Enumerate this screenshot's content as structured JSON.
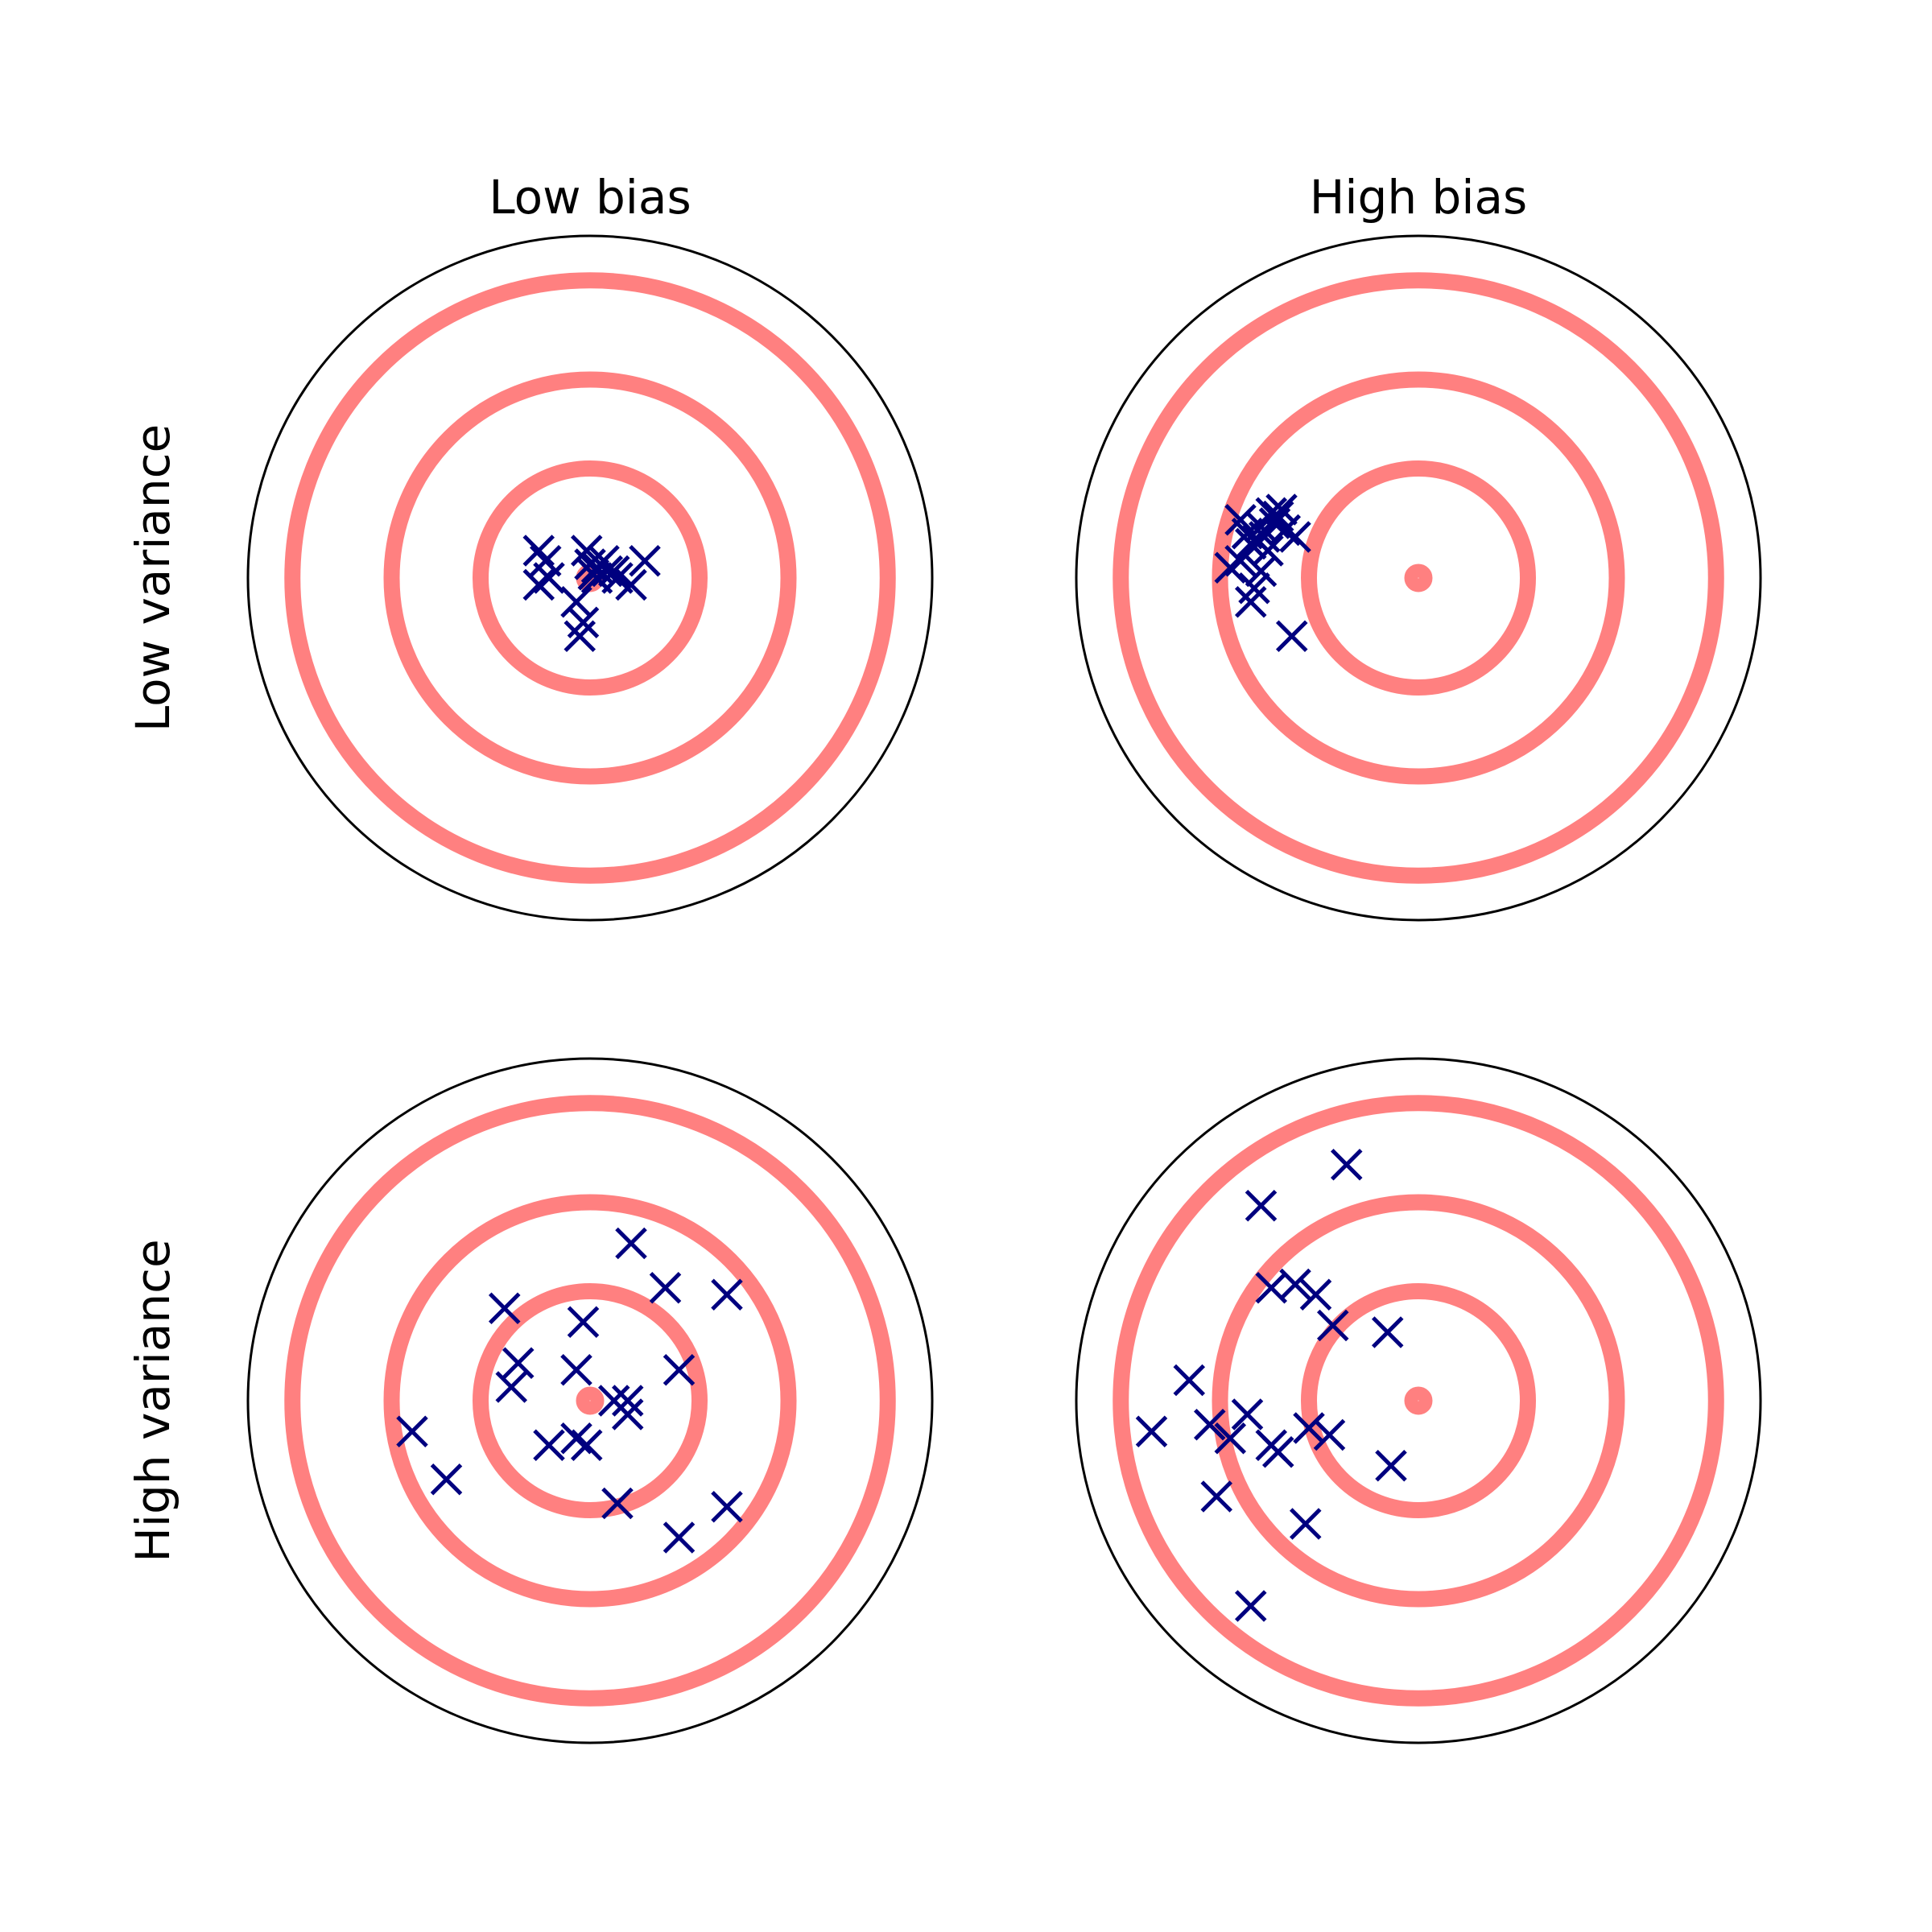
{
  "colors": {
    "ring": "#ff8080",
    "marker": "#00007f",
    "outline": "#000000"
  },
  "column_labels": [
    "Low bias",
    "High bias"
  ],
  "row_labels": [
    "Low variance",
    "High variance"
  ],
  "chart_data": [
    {
      "type": "scatter",
      "title": "Low bias",
      "ylabel": "Low variance",
      "marker": "x",
      "xlim": [
        -1,
        1
      ],
      "ylim": [
        -1,
        1
      ],
      "grid": false,
      "rings": [
        0.02,
        0.32,
        0.58,
        0.87
      ],
      "outer_circle": 1.0,
      "points": [
        {
          "x": -0.15,
          "y": 0.08
        },
        {
          "x": -0.13,
          "y": 0.05
        },
        {
          "x": -0.15,
          "y": -0.02
        },
        {
          "x": -0.12,
          "y": 0.0
        },
        {
          "x": -0.01,
          "y": 0.08
        },
        {
          "x": 0.0,
          "y": 0.04
        },
        {
          "x": 0.01,
          "y": 0.01
        },
        {
          "x": 0.02,
          "y": 0.03
        },
        {
          "x": 0.04,
          "y": 0.05
        },
        {
          "x": 0.05,
          "y": 0.02
        },
        {
          "x": 0.07,
          "y": 0.02
        },
        {
          "x": 0.08,
          "y": 0.0
        },
        {
          "x": 0.12,
          "y": -0.02
        },
        {
          "x": 0.16,
          "y": 0.05
        },
        {
          "x": -0.04,
          "y": -0.07
        },
        {
          "x": -0.02,
          "y": -0.13
        },
        {
          "x": -0.03,
          "y": -0.17
        },
        {
          "x": 0.02,
          "y": 0.0
        }
      ]
    },
    {
      "type": "scatter",
      "title": "High bias",
      "ylabel": "",
      "marker": "x",
      "xlim": [
        -1,
        1
      ],
      "ylim": [
        -1,
        1
      ],
      "grid": false,
      "rings": [
        0.02,
        0.32,
        0.58,
        0.87
      ],
      "outer_circle": 1.0,
      "points": [
        {
          "x": -0.52,
          "y": 0.17
        },
        {
          "x": -0.49,
          "y": 0.1
        },
        {
          "x": -0.5,
          "y": 0.13
        },
        {
          "x": -0.47,
          "y": 0.11
        },
        {
          "x": -0.46,
          "y": 0.15
        },
        {
          "x": -0.45,
          "y": 0.12
        },
        {
          "x": -0.44,
          "y": 0.08
        },
        {
          "x": -0.43,
          "y": 0.19
        },
        {
          "x": -0.42,
          "y": 0.16
        },
        {
          "x": -0.4,
          "y": 0.2
        },
        {
          "x": -0.39,
          "y": 0.14
        },
        {
          "x": -0.36,
          "y": 0.12
        },
        {
          "x": -0.55,
          "y": 0.03
        },
        {
          "x": -0.52,
          "y": 0.05
        },
        {
          "x": -0.48,
          "y": -0.03
        },
        {
          "x": -0.46,
          "y": 0.02
        },
        {
          "x": -0.49,
          "y": -0.07
        },
        {
          "x": -0.37,
          "y": -0.17
        },
        {
          "x": -0.41,
          "y": 0.18
        }
      ]
    },
    {
      "type": "scatter",
      "title": "",
      "ylabel": "High variance",
      "marker": "x",
      "xlim": [
        -1,
        1
      ],
      "ylim": [
        -1,
        1
      ],
      "grid": false,
      "rings": [
        0.02,
        0.32,
        0.58,
        0.87
      ],
      "outer_circle": 1.0,
      "points": [
        {
          "x": 0.12,
          "y": 0.46
        },
        {
          "x": 0.22,
          "y": 0.33
        },
        {
          "x": 0.4,
          "y": 0.31
        },
        {
          "x": -0.25,
          "y": 0.27
        },
        {
          "x": -0.02,
          "y": 0.23
        },
        {
          "x": -0.21,
          "y": 0.11
        },
        {
          "x": -0.04,
          "y": 0.09
        },
        {
          "x": 0.26,
          "y": 0.09
        },
        {
          "x": -0.23,
          "y": 0.04
        },
        {
          "x": 0.07,
          "y": 0.0
        },
        {
          "x": 0.11,
          "y": 0.0
        },
        {
          "x": 0.11,
          "y": -0.04
        },
        {
          "x": -0.52,
          "y": -0.09
        },
        {
          "x": -0.42,
          "y": -0.23
        },
        {
          "x": -0.12,
          "y": -0.13
        },
        {
          "x": -0.04,
          "y": -0.11
        },
        {
          "x": -0.01,
          "y": -0.13
        },
        {
          "x": 0.08,
          "y": -0.3
        },
        {
          "x": 0.4,
          "y": -0.31
        },
        {
          "x": 0.26,
          "y": -0.4
        }
      ]
    },
    {
      "type": "scatter",
      "title": "",
      "ylabel": "",
      "marker": "x",
      "xlim": [
        -1,
        1
      ],
      "ylim": [
        -1,
        1
      ],
      "grid": false,
      "rings": [
        0.02,
        0.32,
        0.58,
        0.87
      ],
      "outer_circle": 1.0,
      "points": [
        {
          "x": -0.21,
          "y": 0.69
        },
        {
          "x": -0.46,
          "y": 0.57
        },
        {
          "x": -0.43,
          "y": 0.33
        },
        {
          "x": -0.36,
          "y": 0.34
        },
        {
          "x": -0.3,
          "y": 0.31
        },
        {
          "x": -0.25,
          "y": 0.22
        },
        {
          "x": -0.09,
          "y": 0.2
        },
        {
          "x": -0.67,
          "y": 0.06
        },
        {
          "x": -0.78,
          "y": -0.09
        },
        {
          "x": -0.61,
          "y": -0.07
        },
        {
          "x": -0.55,
          "y": -0.11
        },
        {
          "x": -0.5,
          "y": -0.04
        },
        {
          "x": -0.43,
          "y": -0.13
        },
        {
          "x": -0.41,
          "y": -0.15
        },
        {
          "x": -0.32,
          "y": -0.08
        },
        {
          "x": -0.26,
          "y": -0.1
        },
        {
          "x": -0.08,
          "y": -0.19
        },
        {
          "x": -0.59,
          "y": -0.28
        },
        {
          "x": -0.33,
          "y": -0.36
        },
        {
          "x": -0.49,
          "y": -0.6
        }
      ]
    }
  ]
}
